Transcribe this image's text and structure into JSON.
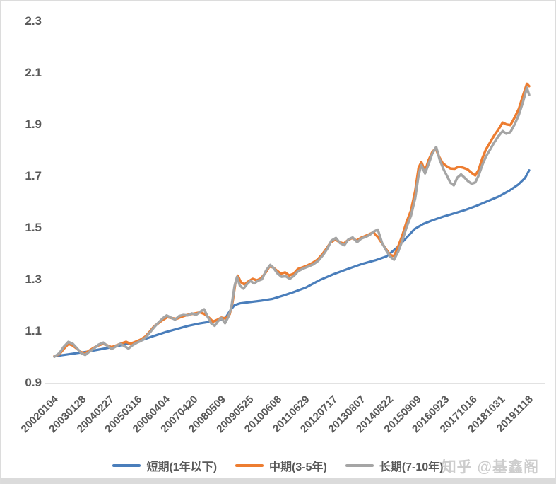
{
  "watermark": "知乎 @基鑫阁",
  "colors": {
    "axis_line": "#d9d9d9",
    "label_text": "#595959",
    "frame": "#dcdcdc"
  },
  "chart_data": {
    "type": "line",
    "title": "",
    "xlabel": "",
    "ylabel": "",
    "grid": "none",
    "legend_position": "bottom",
    "y_axis": {
      "min": 0.9,
      "max": 2.3,
      "step": 0.2,
      "tick_labels": [
        "0.9",
        "1.1",
        "1.3",
        "1.5",
        "1.7",
        "1.9",
        "2.1",
        "2.3"
      ]
    },
    "x_axis": {
      "labels": [
        "20020104",
        "20030128",
        "20040227",
        "20050316",
        "20060404",
        "20070420",
        "20080509",
        "20090525",
        "20100608",
        "20110629",
        "20120717",
        "20130807",
        "20140822",
        "20150909",
        "20160923",
        "20171016",
        "20181031",
        "20191118"
      ]
    },
    "series": [
      {
        "name": "短期(1年以下)",
        "color": "#4a7ebb",
        "width": 3.2,
        "points": [
          [
            0,
            1.0
          ],
          [
            0.4,
            1.006
          ],
          [
            0.8,
            1.012
          ],
          [
            1.2,
            1.018
          ],
          [
            1.6,
            1.026
          ],
          [
            2.0,
            1.034
          ],
          [
            2.4,
            1.043
          ],
          [
            2.8,
            1.052
          ],
          [
            3.2,
            1.065
          ],
          [
            3.6,
            1.08
          ],
          [
            4.0,
            1.094
          ],
          [
            4.4,
            1.106
          ],
          [
            4.8,
            1.118
          ],
          [
            5.2,
            1.127
          ],
          [
            5.6,
            1.134
          ],
          [
            6.0,
            1.142
          ],
          [
            6.15,
            1.152
          ],
          [
            6.3,
            1.178
          ],
          [
            6.45,
            1.198
          ],
          [
            6.65,
            1.205
          ],
          [
            7.0,
            1.21
          ],
          [
            7.4,
            1.215
          ],
          [
            7.8,
            1.222
          ],
          [
            8.2,
            1.235
          ],
          [
            8.6,
            1.25
          ],
          [
            9.0,
            1.266
          ],
          [
            9.5,
            1.295
          ],
          [
            10.0,
            1.318
          ],
          [
            10.5,
            1.338
          ],
          [
            11.0,
            1.357
          ],
          [
            11.5,
            1.372
          ],
          [
            11.9,
            1.387
          ],
          [
            12.3,
            1.424
          ],
          [
            12.6,
            1.458
          ],
          [
            12.9,
            1.493
          ],
          [
            13.2,
            1.512
          ],
          [
            13.5,
            1.525
          ],
          [
            13.9,
            1.54
          ],
          [
            14.3,
            1.553
          ],
          [
            14.7,
            1.566
          ],
          [
            15.1,
            1.582
          ],
          [
            15.5,
            1.6
          ],
          [
            15.9,
            1.618
          ],
          [
            16.3,
            1.642
          ],
          [
            16.6,
            1.664
          ],
          [
            16.85,
            1.69
          ],
          [
            17,
            1.72
          ]
        ]
      },
      {
        "name": "中期(3-5年)",
        "color": "#ed7d31",
        "width": 3.5,
        "points": [
          [
            0,
            1.0
          ],
          [
            0.18,
            1.008
          ],
          [
            0.33,
            1.028
          ],
          [
            0.5,
            1.048
          ],
          [
            0.65,
            1.042
          ],
          [
            0.8,
            1.03
          ],
          [
            0.95,
            1.016
          ],
          [
            1.1,
            1.012
          ],
          [
            1.25,
            1.022
          ],
          [
            1.4,
            1.032
          ],
          [
            1.57,
            1.042
          ],
          [
            1.75,
            1.048
          ],
          [
            1.9,
            1.042
          ],
          [
            2.05,
            1.035
          ],
          [
            2.22,
            1.042
          ],
          [
            2.4,
            1.05
          ],
          [
            2.57,
            1.056
          ],
          [
            2.72,
            1.048
          ],
          [
            2.9,
            1.056
          ],
          [
            3.08,
            1.064
          ],
          [
            3.25,
            1.076
          ],
          [
            3.42,
            1.096
          ],
          [
            3.57,
            1.116
          ],
          [
            3.72,
            1.128
          ],
          [
            3.87,
            1.14
          ],
          [
            4.05,
            1.152
          ],
          [
            4.2,
            1.148
          ],
          [
            4.37,
            1.145
          ],
          [
            4.53,
            1.152
          ],
          [
            4.7,
            1.158
          ],
          [
            4.87,
            1.163
          ],
          [
            5.05,
            1.166
          ],
          [
            5.23,
            1.17
          ],
          [
            5.38,
            1.163
          ],
          [
            5.53,
            1.15
          ],
          [
            5.68,
            1.134
          ],
          [
            5.83,
            1.141
          ],
          [
            5.98,
            1.15
          ],
          [
            6.13,
            1.146
          ],
          [
            6.28,
            1.163
          ],
          [
            6.38,
            1.21
          ],
          [
            6.48,
            1.285
          ],
          [
            6.57,
            1.312
          ],
          [
            6.67,
            1.288
          ],
          [
            6.8,
            1.278
          ],
          [
            6.95,
            1.29
          ],
          [
            7.1,
            1.3
          ],
          [
            7.25,
            1.294
          ],
          [
            7.4,
            1.302
          ],
          [
            7.55,
            1.322
          ],
          [
            7.7,
            1.348
          ],
          [
            7.83,
            1.344
          ],
          [
            7.96,
            1.332
          ],
          [
            8.11,
            1.32
          ],
          [
            8.26,
            1.325
          ],
          [
            8.41,
            1.313
          ],
          [
            8.57,
            1.32
          ],
          [
            8.72,
            1.338
          ],
          [
            8.9,
            1.345
          ],
          [
            9.07,
            1.352
          ],
          [
            9.25,
            1.362
          ],
          [
            9.42,
            1.374
          ],
          [
            9.6,
            1.396
          ],
          [
            9.75,
            1.418
          ],
          [
            9.9,
            1.442
          ],
          [
            10.06,
            1.452
          ],
          [
            10.21,
            1.442
          ],
          [
            10.36,
            1.436
          ],
          [
            10.51,
            1.45
          ],
          [
            10.66,
            1.458
          ],
          [
            10.82,
            1.448
          ],
          [
            10.97,
            1.458
          ],
          [
            11.12,
            1.465
          ],
          [
            11.27,
            1.472
          ],
          [
            11.42,
            1.48
          ],
          [
            11.58,
            1.462
          ],
          [
            11.73,
            1.438
          ],
          [
            11.88,
            1.414
          ],
          [
            12.03,
            1.392
          ],
          [
            12.16,
            1.388
          ],
          [
            12.31,
            1.425
          ],
          [
            12.46,
            1.468
          ],
          [
            12.61,
            1.52
          ],
          [
            12.77,
            1.565
          ],
          [
            12.92,
            1.64
          ],
          [
            13.04,
            1.73
          ],
          [
            13.14,
            1.752
          ],
          [
            13.27,
            1.716
          ],
          [
            13.4,
            1.76
          ],
          [
            13.53,
            1.79
          ],
          [
            13.65,
            1.805
          ],
          [
            13.78,
            1.772
          ],
          [
            13.9,
            1.748
          ],
          [
            14.03,
            1.737
          ],
          [
            14.18,
            1.727
          ],
          [
            14.33,
            1.726
          ],
          [
            14.48,
            1.734
          ],
          [
            14.64,
            1.73
          ],
          [
            14.79,
            1.724
          ],
          [
            14.94,
            1.71
          ],
          [
            15.07,
            1.7
          ],
          [
            15.19,
            1.722
          ],
          [
            15.32,
            1.766
          ],
          [
            15.45,
            1.8
          ],
          [
            15.6,
            1.828
          ],
          [
            15.75,
            1.855
          ],
          [
            15.9,
            1.878
          ],
          [
            16.05,
            1.905
          ],
          [
            16.18,
            1.898
          ],
          [
            16.33,
            1.895
          ],
          [
            16.48,
            1.925
          ],
          [
            16.63,
            1.958
          ],
          [
            16.78,
            2.01
          ],
          [
            16.92,
            2.055
          ],
          [
            17,
            2.046
          ]
        ]
      },
      {
        "name": "长期(7-10年)",
        "color": "#a5a5a5",
        "width": 3.5,
        "points": [
          [
            0,
            0.998
          ],
          [
            0.18,
            1.012
          ],
          [
            0.33,
            1.036
          ],
          [
            0.5,
            1.056
          ],
          [
            0.66,
            1.048
          ],
          [
            0.8,
            1.032
          ],
          [
            0.96,
            1.012
          ],
          [
            1.1,
            1.005
          ],
          [
            1.26,
            1.018
          ],
          [
            1.42,
            1.03
          ],
          [
            1.58,
            1.045
          ],
          [
            1.75,
            1.053
          ],
          [
            1.9,
            1.04
          ],
          [
            2.05,
            1.028
          ],
          [
            2.2,
            1.038
          ],
          [
            2.35,
            1.048
          ],
          [
            2.5,
            1.04
          ],
          [
            2.65,
            1.03
          ],
          [
            2.8,
            1.043
          ],
          [
            2.96,
            1.053
          ],
          [
            3.11,
            1.06
          ],
          [
            3.26,
            1.072
          ],
          [
            3.42,
            1.092
          ],
          [
            3.57,
            1.112
          ],
          [
            3.72,
            1.13
          ],
          [
            3.87,
            1.146
          ],
          [
            4.02,
            1.158
          ],
          [
            4.17,
            1.15
          ],
          [
            4.32,
            1.142
          ],
          [
            4.47,
            1.156
          ],
          [
            4.62,
            1.16
          ],
          [
            4.77,
            1.158
          ],
          [
            4.92,
            1.166
          ],
          [
            5.07,
            1.16
          ],
          [
            5.23,
            1.173
          ],
          [
            5.36,
            1.182
          ],
          [
            5.48,
            1.155
          ],
          [
            5.61,
            1.128
          ],
          [
            5.74,
            1.118
          ],
          [
            5.86,
            1.136
          ],
          [
            5.98,
            1.148
          ],
          [
            6.11,
            1.128
          ],
          [
            6.24,
            1.155
          ],
          [
            6.34,
            1.192
          ],
          [
            6.45,
            1.272
          ],
          [
            6.54,
            1.308
          ],
          [
            6.64,
            1.274
          ],
          [
            6.77,
            1.262
          ],
          [
            6.9,
            1.28
          ],
          [
            7.02,
            1.292
          ],
          [
            7.15,
            1.282
          ],
          [
            7.28,
            1.292
          ],
          [
            7.43,
            1.298
          ],
          [
            7.58,
            1.332
          ],
          [
            7.73,
            1.354
          ],
          [
            7.86,
            1.34
          ],
          [
            7.98,
            1.322
          ],
          [
            8.13,
            1.308
          ],
          [
            8.28,
            1.31
          ],
          [
            8.43,
            1.3
          ],
          [
            8.58,
            1.312
          ],
          [
            8.73,
            1.33
          ],
          [
            8.92,
            1.34
          ],
          [
            9.1,
            1.348
          ],
          [
            9.27,
            1.356
          ],
          [
            9.45,
            1.37
          ],
          [
            9.62,
            1.392
          ],
          [
            9.77,
            1.416
          ],
          [
            9.92,
            1.448
          ],
          [
            10.08,
            1.458
          ],
          [
            10.23,
            1.438
          ],
          [
            10.38,
            1.43
          ],
          [
            10.53,
            1.453
          ],
          [
            10.68,
            1.46
          ],
          [
            10.84,
            1.442
          ],
          [
            10.99,
            1.456
          ],
          [
            11.14,
            1.462
          ],
          [
            11.29,
            1.47
          ],
          [
            11.44,
            1.483
          ],
          [
            11.58,
            1.49
          ],
          [
            11.73,
            1.44
          ],
          [
            11.88,
            1.41
          ],
          [
            12.03,
            1.385
          ],
          [
            12.16,
            1.374
          ],
          [
            12.31,
            1.405
          ],
          [
            12.46,
            1.448
          ],
          [
            12.61,
            1.5
          ],
          [
            12.77,
            1.545
          ],
          [
            12.92,
            1.612
          ],
          [
            13.04,
            1.702
          ],
          [
            13.14,
            1.74
          ],
          [
            13.27,
            1.708
          ],
          [
            13.4,
            1.744
          ],
          [
            13.53,
            1.784
          ],
          [
            13.67,
            1.81
          ],
          [
            13.8,
            1.76
          ],
          [
            13.93,
            1.725
          ],
          [
            14.05,
            1.7
          ],
          [
            14.18,
            1.672
          ],
          [
            14.3,
            1.662
          ],
          [
            14.43,
            1.692
          ],
          [
            14.56,
            1.704
          ],
          [
            14.68,
            1.692
          ],
          [
            14.81,
            1.678
          ],
          [
            14.94,
            1.668
          ],
          [
            15.07,
            1.673
          ],
          [
            15.19,
            1.7
          ],
          [
            15.32,
            1.74
          ],
          [
            15.45,
            1.773
          ],
          [
            15.6,
            1.8
          ],
          [
            15.75,
            1.828
          ],
          [
            15.9,
            1.852
          ],
          [
            16.05,
            1.872
          ],
          [
            16.18,
            1.862
          ],
          [
            16.33,
            1.868
          ],
          [
            16.48,
            1.898
          ],
          [
            16.63,
            1.935
          ],
          [
            16.78,
            1.985
          ],
          [
            16.92,
            2.04
          ],
          [
            17,
            2.012
          ]
        ]
      }
    ]
  }
}
